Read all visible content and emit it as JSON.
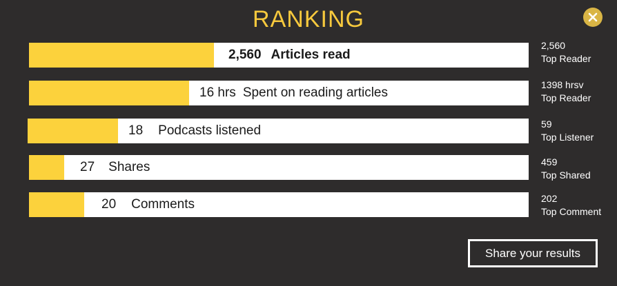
{
  "title": "RANKING",
  "colors": {
    "background": "#2e2c2c",
    "accent": "#fcd23c",
    "title": "#f7c93d",
    "close": "#d9b545"
  },
  "icons": {
    "close": "close-icon"
  },
  "stats": [
    {
      "value": "2,560",
      "label": "Articles read",
      "progress": 0.37,
      "top_value": "2,560",
      "top_label": "Top Reader"
    },
    {
      "value": "16 hrs",
      "label": "Spent on reading articles",
      "progress": 0.32,
      "top_value": "1398 hrsv",
      "top_label": "Top Reader"
    },
    {
      "value": "18",
      "label": "Podcasts listened",
      "progress": 0.18,
      "top_value": "59",
      "top_label": "Top Listener"
    },
    {
      "value": "27",
      "label": "Shares",
      "progress": 0.07,
      "top_value": "459",
      "top_label": "Top Shared"
    },
    {
      "value": "20",
      "label": "Comments",
      "progress": 0.11,
      "top_value": "202",
      "top_label": "Top Comment"
    }
  ],
  "share_button": "Share your results"
}
